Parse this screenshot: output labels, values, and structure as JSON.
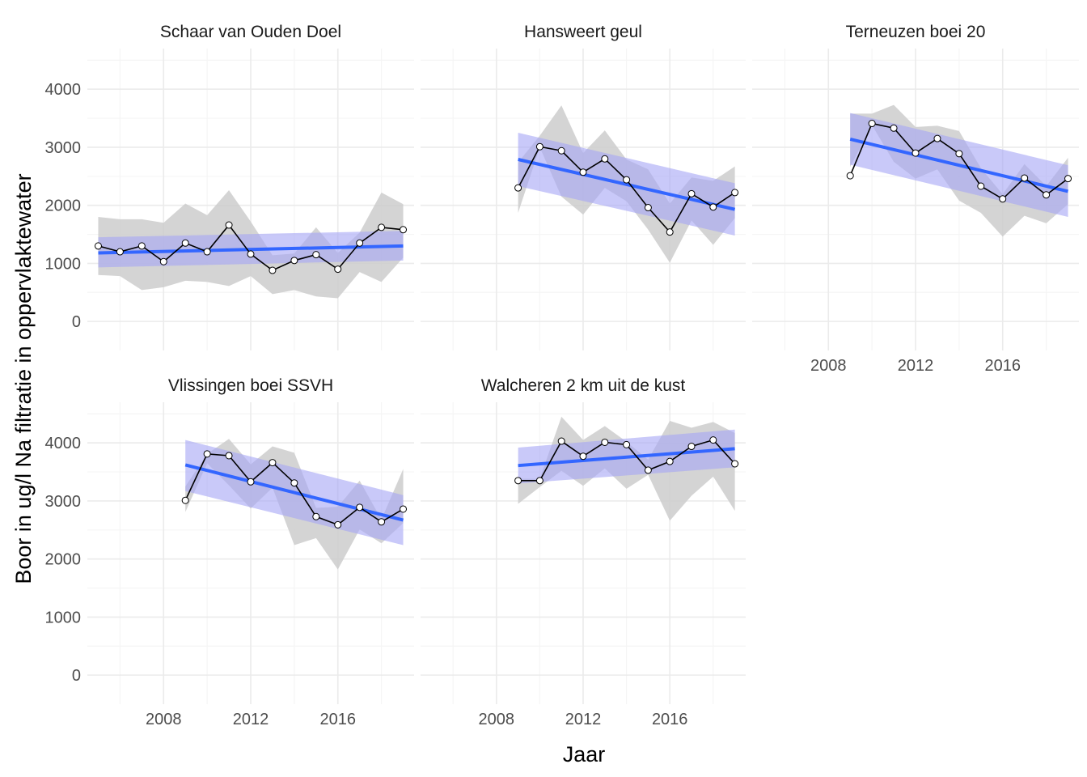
{
  "chart_data": {
    "type": "line",
    "xlabel": "Jaar",
    "ylabel": "Boor in ug/l Na filtratie in oppervlaktewater",
    "xlim": [
      2004.5,
      2019.5
    ],
    "ylim": [
      -500,
      4700
    ],
    "x_ticks": [
      2008,
      2012,
      2016
    ],
    "x_tick_labels": [
      "2008",
      "2012",
      "2016"
    ],
    "y_ticks": [
      0,
      1000,
      2000,
      3000,
      4000
    ],
    "y_tick_labels": [
      "0",
      "1000",
      "2000",
      "3000",
      "4000"
    ],
    "grid": true,
    "colors": {
      "ribbon_range": "#cccccc",
      "ribbon_confidence": "#a5a5f5",
      "trend_line": "#3366ff",
      "series_line": "#000000",
      "points_fill": "#ffffff",
      "grid_major": "#ebebeb",
      "grid_minor": "#f5f5f5"
    },
    "panels": [
      {
        "title": "Schaar van Ouden Doel",
        "years": [
          2005,
          2006,
          2007,
          2008,
          2009,
          2010,
          2011,
          2012,
          2013,
          2014,
          2015,
          2016,
          2017,
          2018,
          2019
        ],
        "values": [
          1300,
          1200,
          1300,
          1030,
          1350,
          1200,
          1660,
          1160,
          880,
          1050,
          1150,
          900,
          1350,
          1620,
          1580
        ],
        "range_low": [
          800,
          780,
          540,
          590,
          700,
          680,
          610,
          780,
          470,
          540,
          430,
          400,
          850,
          680,
          1100
        ],
        "range_high": [
          1800,
          1760,
          1760,
          1700,
          2030,
          1830,
          2260,
          1720,
          1140,
          1170,
          1620,
          1180,
          1530,
          2220,
          2020
        ],
        "trend": [
          1180,
          1300
        ],
        "ci_low": [
          930,
          1050
        ],
        "ci_high": [
          1450,
          1560
        ]
      },
      {
        "title": "Hansweert geul",
        "years": [
          2009,
          2010,
          2011,
          2012,
          2013,
          2014,
          2015,
          2016,
          2017,
          2018,
          2019
        ],
        "values": [
          2300,
          3010,
          2940,
          2570,
          2800,
          2440,
          1960,
          1540,
          2200,
          1970,
          2220
        ],
        "range_low": [
          1870,
          3000,
          2150,
          1840,
          2300,
          2070,
          1580,
          1010,
          1740,
          1320,
          1780
        ],
        "range_high": [
          2740,
          3200,
          3720,
          2900,
          3290,
          2790,
          2620,
          2030,
          2480,
          2420,
          2670
        ],
        "trend": [
          2790,
          1930
        ],
        "ci_low": [
          2330,
          1480
        ],
        "ci_high": [
          3250,
          2380
        ]
      },
      {
        "title": "Terneuzen boei 20",
        "years": [
          2009,
          2010,
          2011,
          2012,
          2013,
          2014,
          2015,
          2016,
          2017,
          2018,
          2019
        ],
        "values": [
          2510,
          3410,
          3330,
          2900,
          3150,
          2890,
          2330,
          2110,
          2470,
          2180,
          2460
        ],
        "range_low": [
          2660,
          3380,
          2750,
          2460,
          2620,
          2080,
          1870,
          1460,
          1820,
          1690,
          2020
        ],
        "range_high": [
          3580,
          3580,
          3730,
          3350,
          3370,
          3280,
          2640,
          2190,
          2710,
          2330,
          2820
        ],
        "trend": [
          3140,
          2240
        ],
        "ci_low": [
          2700,
          1800
        ],
        "ci_high": [
          3590,
          2690
        ]
      },
      {
        "title": "Vlissingen boei SSVH",
        "years": [
          2009,
          2010,
          2011,
          2012,
          2013,
          2014,
          2015,
          2016,
          2017,
          2018,
          2019
        ],
        "values": [
          3010,
          3810,
          3780,
          3330,
          3660,
          3310,
          2730,
          2590,
          2890,
          2640,
          2860
        ],
        "range_low": [
          2810,
          3650,
          3270,
          2870,
          3230,
          2240,
          2360,
          1820,
          2510,
          2270,
          2620
        ],
        "range_high": [
          3250,
          3810,
          4070,
          3630,
          3940,
          3830,
          2880,
          2900,
          3350,
          2680,
          3550
        ],
        "trend": [
          3620,
          2670
        ],
        "ci_low": [
          3170,
          2240
        ],
        "ci_high": [
          4050,
          3100
        ]
      },
      {
        "title": "Walcheren 2 km uit de kust",
        "years": [
          2009,
          2010,
          2011,
          2012,
          2013,
          2014,
          2015,
          2016,
          2017,
          2018,
          2019
        ],
        "values": [
          3350,
          3350,
          4030,
          3770,
          4010,
          3970,
          3530,
          3680,
          3940,
          4050,
          3640
        ],
        "range_low": [
          2950,
          3240,
          3520,
          3260,
          3560,
          3210,
          3450,
          2660,
          3090,
          3420,
          2830
        ],
        "range_high": [
          3380,
          3380,
          4450,
          4050,
          4290,
          4020,
          3710,
          4380,
          4260,
          4360,
          4170
        ],
        "trend": [
          3610,
          3900
        ],
        "ci_low": [
          3300,
          3580
        ],
        "ci_high": [
          3920,
          4230
        ]
      }
    ]
  }
}
